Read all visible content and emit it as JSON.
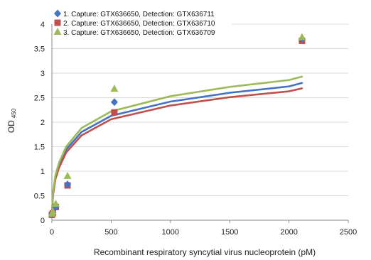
{
  "chart_data": {
    "type": "scatter",
    "xlabel": "Recombinant respiratory syncytial virus nucleoprotein (pM)",
    "ylabel": "OD",
    "ylabel_subscript": "450",
    "xlim": [
      0,
      2500
    ],
    "ylim": [
      0,
      4
    ],
    "xticks": [
      0,
      500,
      1000,
      1500,
      2000,
      2500
    ],
    "yticks": [
      0,
      0.5,
      1,
      1.5,
      2,
      2.5,
      3,
      3.5,
      4
    ],
    "grid": "horizontal",
    "legend_position": "top-left",
    "series": [
      {
        "name": "1. Capture: GTX636650, Detection: GTX636711",
        "color": "#4472c4",
        "marker": "diamond",
        "points": [
          [
            0,
            0.12
          ],
          [
            8,
            0.15
          ],
          [
            33,
            0.27
          ],
          [
            132,
            0.73
          ],
          [
            527,
            2.41
          ],
          [
            2110,
            3.7
          ]
        ],
        "fit_curve": [
          [
            2,
            0.22
          ],
          [
            10,
            0.55
          ],
          [
            30,
            0.88
          ],
          [
            60,
            1.12
          ],
          [
            120,
            1.44
          ],
          [
            250,
            1.8
          ],
          [
            500,
            2.13
          ],
          [
            1000,
            2.42
          ],
          [
            1500,
            2.6
          ],
          [
            2000,
            2.73
          ],
          [
            2110,
            2.8
          ]
        ]
      },
      {
        "name": "2. Capture: GTX636650, Detection: GTX636710",
        "color": "#c0504d",
        "marker": "square",
        "points": [
          [
            0,
            0.11
          ],
          [
            8,
            0.14
          ],
          [
            33,
            0.27
          ],
          [
            132,
            0.71
          ],
          [
            527,
            2.2
          ],
          [
            2110,
            3.66
          ]
        ],
        "fit_curve": [
          [
            2,
            0.2
          ],
          [
            10,
            0.52
          ],
          [
            30,
            0.84
          ],
          [
            60,
            1.07
          ],
          [
            120,
            1.38
          ],
          [
            250,
            1.73
          ],
          [
            500,
            2.06
          ],
          [
            1000,
            2.34
          ],
          [
            1500,
            2.51
          ],
          [
            2000,
            2.63
          ],
          [
            2110,
            2.69
          ]
        ]
      },
      {
        "name": "3. Capture: GTX636650, Detection: GTX636709",
        "color": "#9bbb59",
        "marker": "triangle",
        "points": [
          [
            0,
            0.13
          ],
          [
            8,
            0.17
          ],
          [
            33,
            0.33
          ],
          [
            132,
            0.9
          ],
          [
            527,
            2.68
          ],
          [
            2110,
            3.73
          ]
        ],
        "fit_curve": [
          [
            2,
            0.24
          ],
          [
            10,
            0.58
          ],
          [
            30,
            0.92
          ],
          [
            60,
            1.17
          ],
          [
            120,
            1.5
          ],
          [
            250,
            1.88
          ],
          [
            500,
            2.22
          ],
          [
            1000,
            2.53
          ],
          [
            1500,
            2.72
          ],
          [
            2000,
            2.86
          ],
          [
            2110,
            2.93
          ]
        ]
      }
    ]
  }
}
